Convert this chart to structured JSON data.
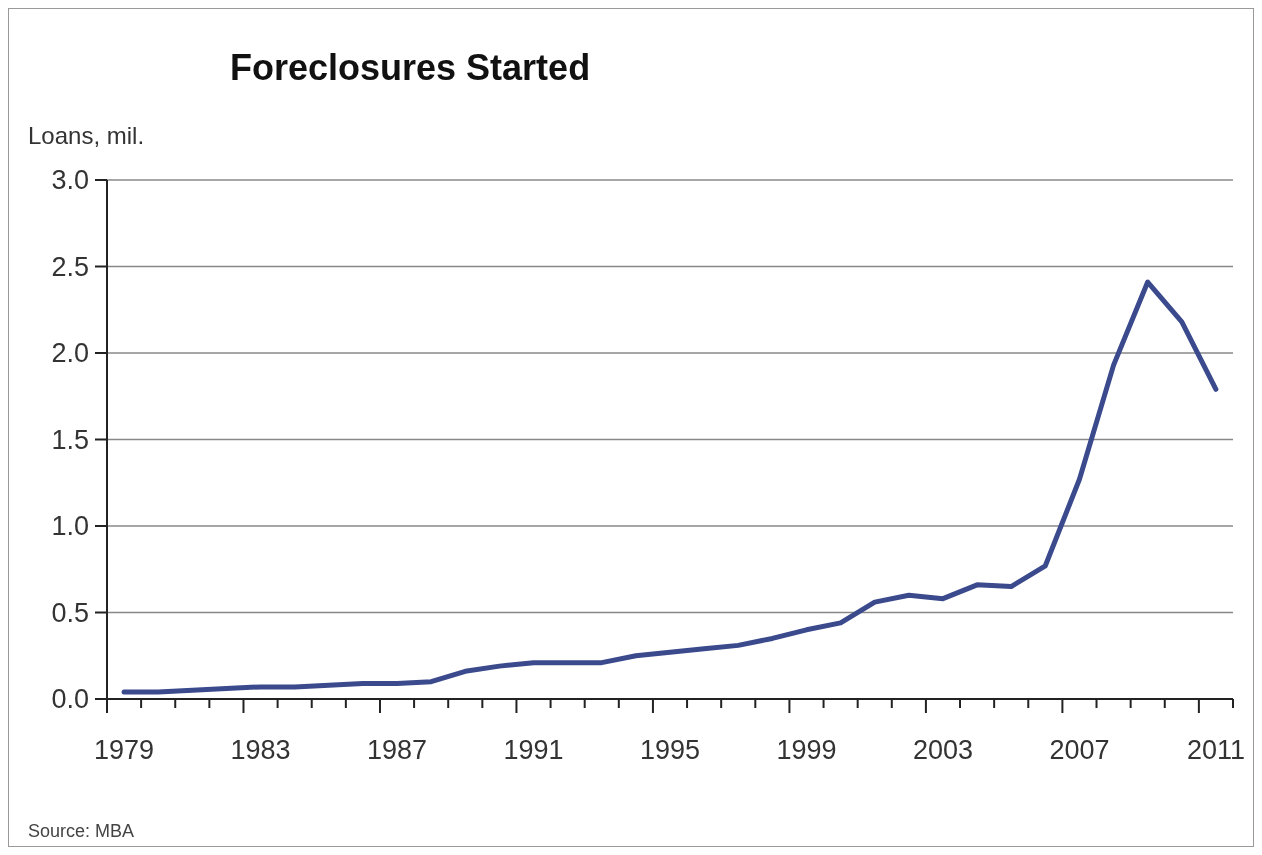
{
  "chart_data": {
    "type": "line",
    "title": "Foreclosures Started",
    "ylabel": "Loans, mil.",
    "categories": [
      "1979",
      null,
      null,
      null,
      "1983",
      null,
      null,
      null,
      "1987",
      null,
      null,
      null,
      "1991",
      null,
      null,
      null,
      "1995",
      null,
      null,
      null,
      "1999",
      null,
      null,
      null,
      "2003",
      null,
      null,
      null,
      "2007",
      null,
      null,
      null,
      "2011"
    ],
    "series": [
      {
        "color": "#3a4a8c",
        "values": [
          0.04,
          0.04,
          0.05,
          0.06,
          0.07,
          0.07,
          0.08,
          0.09,
          0.09,
          0.1,
          0.16,
          0.19,
          0.21,
          0.21,
          0.21,
          0.25,
          0.27,
          0.29,
          0.31,
          0.35,
          0.4,
          0.44,
          0.56,
          0.6,
          0.58,
          0.66,
          0.65,
          0.77,
          1.27,
          1.93,
          2.41,
          2.18,
          1.79
        ]
      }
    ],
    "ylim": [
      0,
      3
    ],
    "yticks": [
      {
        "value": 0,
        "label": "0.0"
      },
      {
        "value": 0.5,
        "label": "0.5"
      },
      {
        "value": 1,
        "label": "1.0"
      },
      {
        "value": 1.5,
        "label": "1.5"
      },
      {
        "value": 2,
        "label": "2.0"
      },
      {
        "value": 2.5,
        "label": "2.5"
      },
      {
        "value": 3,
        "label": "3.0"
      }
    ],
    "grid": "y",
    "marker": "none",
    "line_style": "solid",
    "annotations": [
      "Source: MBA"
    ]
  }
}
